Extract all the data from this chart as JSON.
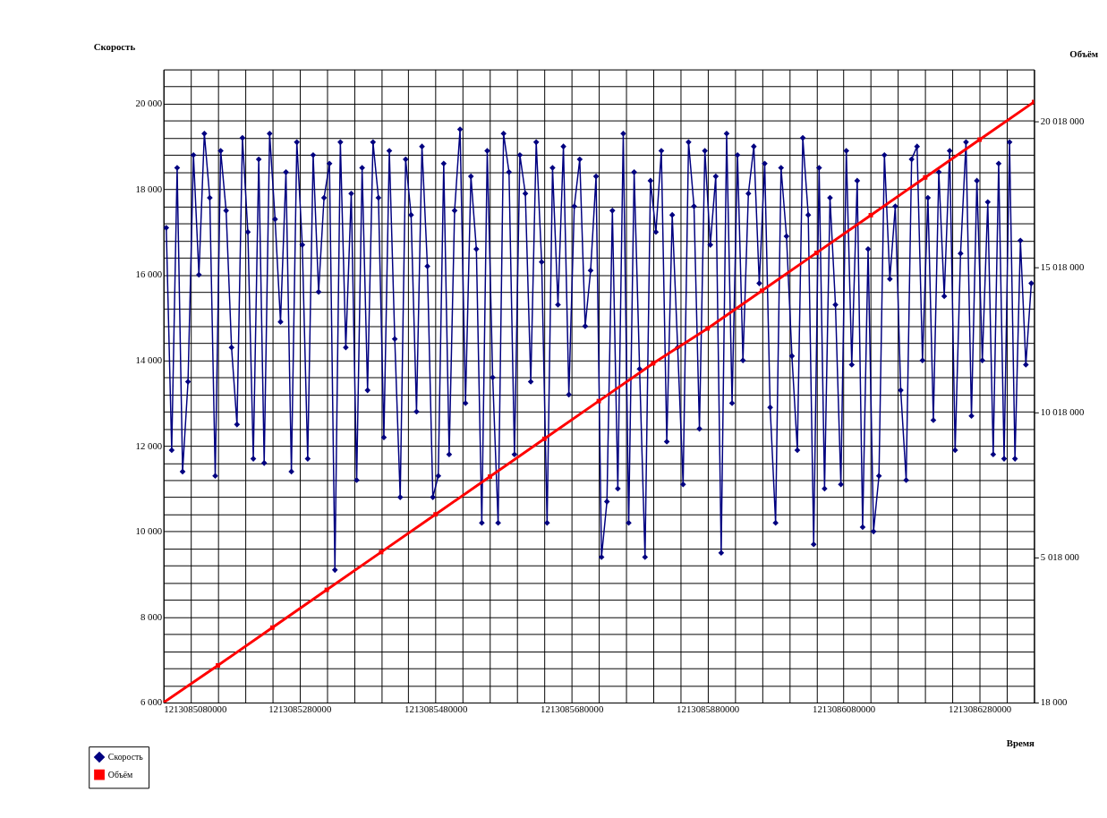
{
  "chart_data": {
    "type": "line",
    "xlabel": "Время",
    "ylabel": "Скорость",
    "y2label": "Объём",
    "xlim": [
      1213085080000,
      1213086360000
    ],
    "xticks": [
      1213085080000,
      1213085280000,
      1213085480000,
      1213085680000,
      1213085880000,
      1213086080000,
      1213086280000
    ],
    "ylim": [
      6000,
      20800
    ],
    "yticks": [
      {
        "value": 6000,
        "label": "6 000"
      },
      {
        "value": 8000,
        "label": "8 000"
      },
      {
        "value": 10000,
        "label": "10 000"
      },
      {
        "value": 12000,
        "label": "12 000"
      },
      {
        "value": 14000,
        "label": "14 000"
      },
      {
        "value": 16000,
        "label": "16 000"
      },
      {
        "value": 18000,
        "label": "18 000"
      },
      {
        "value": 20000,
        "label": "20 000"
      }
    ],
    "y2lim": [
      18000,
      21818000
    ],
    "y2ticks": [
      {
        "value": 18000,
        "label": "18 000"
      },
      {
        "value": 5018000,
        "label": "5 018 000"
      },
      {
        "value": 10018000,
        "label": "10 018 000"
      },
      {
        "value": 15018000,
        "label": "15 018 000"
      },
      {
        "value": 20018000,
        "label": "20 018 000"
      }
    ],
    "grid": true,
    "legend": "bottom left",
    "series": [
      {
        "name": "Скорость",
        "color": "#000080",
        "marker": "diamond",
        "x": [
          1213085084000,
          1213085092000,
          1213085100000,
          1213085108000,
          1213085116000,
          1213085124000,
          1213085132000,
          1213085140000,
          1213085148000,
          1213085156000,
          1213085164000,
          1213085172000,
          1213085180000,
          1213085188000,
          1213085196000,
          1213085204000,
          1213085212000,
          1213085220000,
          1213085228000,
          1213085236000,
          1213085244000,
          1213085252000,
          1213085260000,
          1213085268000,
          1213085276000,
          1213085284000,
          1213085292000,
          1213085300000,
          1213085308000,
          1213085316000,
          1213085324000,
          1213085332000,
          1213085340000,
          1213085348000,
          1213085356000,
          1213085364000,
          1213085372000,
          1213085380000,
          1213085388000,
          1213085396000,
          1213085404000,
          1213085412000,
          1213085420000,
          1213085428000,
          1213085436000,
          1213085444000,
          1213085452000,
          1213085460000,
          1213085468000,
          1213085476000,
          1213085484000,
          1213085492000,
          1213085500000,
          1213085508000,
          1213085516000,
          1213085524000,
          1213085532000,
          1213085540000,
          1213085548000,
          1213085556000,
          1213085564000,
          1213085572000,
          1213085580000,
          1213085588000,
          1213085596000,
          1213085604000,
          1213085612000,
          1213085620000,
          1213085628000,
          1213085636000,
          1213085644000,
          1213085652000,
          1213085660000,
          1213085668000,
          1213085676000,
          1213085684000,
          1213085692000,
          1213085700000,
          1213085708000,
          1213085716000,
          1213085724000,
          1213085732000,
          1213085740000,
          1213085748000,
          1213085756000,
          1213085764000,
          1213085772000,
          1213085780000,
          1213085788000,
          1213085796000,
          1213085804000,
          1213085812000,
          1213085820000,
          1213085828000,
          1213085836000,
          1213085844000,
          1213085852000,
          1213085860000,
          1213085868000,
          1213085876000,
          1213085884000,
          1213085892000,
          1213085900000,
          1213085908000,
          1213085916000,
          1213085924000,
          1213085932000,
          1213085940000,
          1213085948000,
          1213085956000,
          1213085964000,
          1213085972000,
          1213085980000,
          1213085988000,
          1213085996000,
          1213086004000,
          1213086012000,
          1213086020000,
          1213086028000,
          1213086036000,
          1213086044000,
          1213086052000,
          1213086060000,
          1213086068000,
          1213086076000,
          1213086084000,
          1213086092000,
          1213086100000,
          1213086108000,
          1213086116000,
          1213086124000,
          1213086132000,
          1213086140000,
          1213086148000,
          1213086156000,
          1213086164000,
          1213086172000,
          1213086180000,
          1213086188000,
          1213086196000,
          1213086204000,
          1213086212000,
          1213086220000,
          1213086228000,
          1213086236000,
          1213086244000,
          1213086252000,
          1213086260000,
          1213086268000,
          1213086276000,
          1213086284000,
          1213086292000,
          1213086300000,
          1213086308000,
          1213086316000,
          1213086324000,
          1213086332000,
          1213086340000,
          1213086348000,
          1213086356000
        ],
        "values": [
          17100,
          11900,
          18500,
          11400,
          13500,
          18800,
          16000,
          19300,
          17800,
          11300,
          18900,
          17500,
          14300,
          12500,
          19200,
          17000,
          11700,
          18700,
          11600,
          19300,
          17300,
          14900,
          18400,
          11400,
          19100,
          16700,
          11700,
          18800,
          15600,
          17800,
          18600,
          9100,
          19100,
          14300,
          17900,
          11200,
          18500,
          13300,
          19100,
          17800,
          12200,
          18900,
          14500,
          10800,
          18700,
          17400,
          12800,
          19000,
          16200,
          10800,
          11300,
          18600,
          11800,
          17500,
          19400,
          13000,
          18300,
          16600,
          10200,
          18900,
          13600,
          10200,
          19300,
          18400,
          11800,
          18800,
          17900,
          13500,
          19100,
          16300,
          10200,
          18500,
          15300,
          19000,
          13200,
          17600,
          18700,
          14800,
          16100,
          18300,
          9400,
          10700,
          17500,
          11000,
          19300,
          10200,
          18400,
          13800,
          9400,
          18200,
          17000,
          18900,
          12100,
          17400,
          14300,
          11100,
          19100,
          17600,
          12400,
          18900,
          16700,
          18300,
          9500,
          19300,
          13000,
          18800,
          14000,
          17900,
          19000,
          15800,
          18600,
          12900,
          10200,
          18500,
          16900,
          14100,
          11900,
          19200,
          17400,
          9700,
          18500,
          11000,
          17800,
          15300,
          11100,
          18900,
          13900,
          18200,
          10100,
          16600,
          10000,
          11300,
          18800,
          15900,
          17600,
          13300,
          11200,
          18700,
          19000,
          14000,
          17800,
          12600,
          18400,
          15500,
          18900,
          11900,
          16500,
          19100,
          12700,
          18200,
          14000,
          17700,
          11800,
          18600,
          11700,
          19100,
          11700,
          16800,
          13900,
          15800
        ]
      },
      {
        "name": "Объём",
        "color": "#ff0000",
        "marker": "square",
        "axis": "y2",
        "x": [
          1213085080000,
          1213085160000,
          1213085240000,
          1213085320000,
          1213085400000,
          1213085480000,
          1213085560000,
          1213085640000,
          1213085720000,
          1213085800000,
          1213085880000,
          1213085960000,
          1213086040000,
          1213086120000,
          1213086200000,
          1213086280000,
          1213086360000
        ],
        "values": [
          18000,
          1300000,
          2600000,
          3900000,
          5200000,
          6500000,
          7800000,
          9100000,
          10400000,
          11700000,
          12900000,
          14200000,
          15500000,
          16800000,
          18100000,
          19400000,
          20700000
        ]
      }
    ]
  }
}
